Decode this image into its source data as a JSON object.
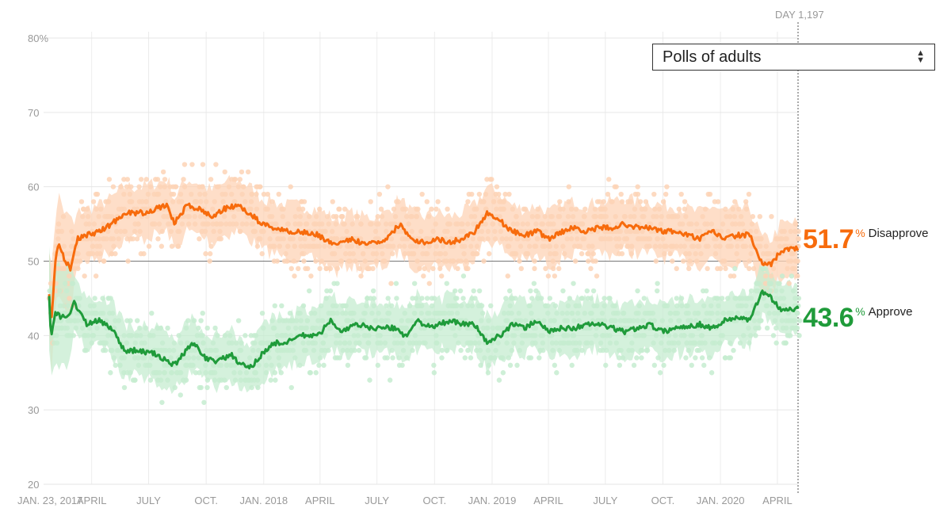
{
  "chart_data": {
    "type": "line",
    "title": "",
    "xlabel": "",
    "ylabel": "",
    "ylim": [
      20,
      80
    ],
    "xlim_days": [
      0,
      1197
    ],
    "y_ticks": [
      "80%",
      "70",
      "60",
      "50",
      "40",
      "30",
      "20"
    ],
    "y_tick_values": [
      80,
      70,
      60,
      50,
      40,
      30,
      20
    ],
    "x_ticks": [
      {
        "label": "JAN. 23, 2017",
        "day": 0
      },
      {
        "label": "APRIL",
        "day": 68
      },
      {
        "label": "JULY",
        "day": 159
      },
      {
        "label": "OCT.",
        "day": 251
      },
      {
        "label": "JAN. 2018",
        "day": 343
      },
      {
        "label": "APRIL",
        "day": 433
      },
      {
        "label": "JULY",
        "day": 524
      },
      {
        "label": "OCT.",
        "day": 616
      },
      {
        "label": "JAN. 2019",
        "day": 708
      },
      {
        "label": "APRIL",
        "day": 798
      },
      {
        "label": "JULY",
        "day": 889
      },
      {
        "label": "OCT.",
        "day": 981
      },
      {
        "label": "JAN. 2020",
        "day": 1073
      },
      {
        "label": "APRIL",
        "day": 1164
      }
    ],
    "reference_line": 50,
    "marker": {
      "label": "DAY 1,197",
      "day": 1197
    },
    "series": [
      {
        "name": "Disapprove",
        "color": "#f76b0c",
        "band_color": "#fdd3b6",
        "final_value": "51.7",
        "days": [
          0,
          3,
          10,
          15,
          25,
          35,
          45,
          60,
          80,
          100,
          120,
          150,
          170,
          190,
          200,
          220,
          240,
          260,
          280,
          300,
          320,
          340,
          360,
          380,
          400,
          430,
          460,
          480,
          500,
          520,
          540,
          560,
          580,
          600,
          620,
          640,
          660,
          680,
          700,
          720,
          740,
          760,
          780,
          800,
          820,
          840,
          860,
          880,
          900,
          920,
          940,
          960,
          980,
          1000,
          1040,
          1060,
          1080,
          1100,
          1120,
          1140,
          1155,
          1170,
          1197
        ],
        "values": [
          45.7,
          41,
          50,
          52.5,
          50,
          49,
          53,
          53.5,
          54,
          55,
          56.5,
          56.5,
          57,
          57.5,
          55,
          57.5,
          57,
          56,
          57,
          57.5,
          56.5,
          55,
          54.5,
          54,
          54,
          53.5,
          52,
          53,
          52.5,
          52.5,
          53,
          55,
          53,
          52.5,
          53,
          52.5,
          53,
          54,
          56.5,
          55.5,
          54,
          53.5,
          54,
          53,
          54,
          54.5,
          54,
          54.5,
          54.5,
          55,
          54.5,
          54.5,
          54,
          54,
          53,
          54,
          53,
          53.5,
          53.5,
          49.5,
          49.5,
          51.5,
          51.7
        ]
      },
      {
        "name": "Approve",
        "color": "#1f9b3a",
        "band_color": "#c6ecd0",
        "final_value": "43.6",
        "days": [
          0,
          3,
          10,
          20,
          30,
          40,
          60,
          80,
          100,
          120,
          140,
          170,
          200,
          220,
          230,
          250,
          270,
          290,
          300,
          320,
          340,
          360,
          380,
          400,
          430,
          450,
          470,
          490,
          520,
          550,
          570,
          590,
          610,
          640,
          660,
          680,
          700,
          720,
          740,
          760,
          780,
          800,
          820,
          840,
          860,
          880,
          900,
          920,
          940,
          960,
          980,
          1000,
          1040,
          1060,
          1080,
          1100,
          1120,
          1140,
          1155,
          1170,
          1197
        ],
        "values": [
          45,
          40,
          43,
          42.5,
          42.5,
          44.5,
          41.5,
          42,
          41,
          38,
          38,
          37.5,
          36,
          38,
          39,
          37,
          36.5,
          37.5,
          36.5,
          35.5,
          37.5,
          39,
          39,
          40,
          40,
          42,
          40.5,
          41.5,
          41,
          41,
          40,
          42,
          41,
          42,
          41.5,
          41.5,
          39,
          40,
          41.5,
          41,
          42,
          40.5,
          41,
          41,
          41.5,
          41.5,
          41,
          40.5,
          41,
          41.5,
          40.5,
          41,
          41.5,
          41,
          42,
          42.5,
          42,
          46,
          45,
          43.5,
          43.6
        ]
      }
    ]
  },
  "controls": {
    "poll_filter": "Polls of adults"
  },
  "labels": {
    "percent_sign": "%"
  }
}
